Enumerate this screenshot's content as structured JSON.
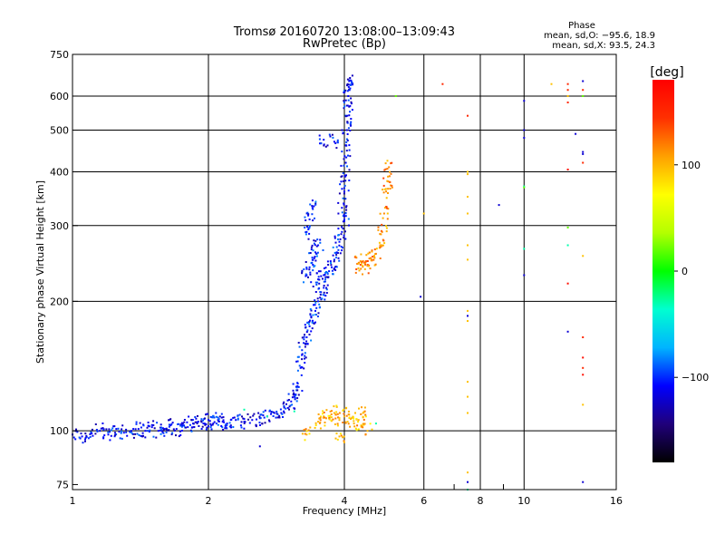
{
  "chart_data": {
    "type": "scatter",
    "title": "Tromsø 20160720 13:08:00–13:09:43",
    "subtitle": "RwPretec (Bp)",
    "xlabel": "Frequency [MHz]",
    "ylabel": "Stationary phase Virtual Height [km]",
    "x_scale": "log",
    "y_scale": "log",
    "xlim": [
      1,
      16
    ],
    "ylim": [
      73,
      750
    ],
    "x_ticks": [
      1,
      2,
      4,
      6,
      8,
      10,
      16
    ],
    "x_tick_labels": [
      "1",
      "2",
      "4",
      "6",
      "8",
      "10",
      "16"
    ],
    "y_ticks": [
      75,
      100,
      200,
      300,
      400,
      500,
      600,
      750
    ],
    "y_tick_labels": [
      "75",
      "100",
      "200",
      "300",
      "400",
      "500",
      "600",
      "750"
    ],
    "grid": true,
    "stats": {
      "heading": "Phase",
      "line_o": "mean, sd,O: −95.6, 18.9",
      "line_x": "mean, sd,X:  93.5, 24.3"
    },
    "colorbar": {
      "label": "[deg]",
      "range": [
        -180,
        180
      ],
      "ticks": [
        100,
        0,
        -100
      ],
      "tick_labels": [
        "100",
        "0",
        "−100"
      ],
      "colors": [
        "#000000",
        "#20007a",
        "#0000ff",
        "#00b4ff",
        "#00ffd0",
        "#00ff00",
        "#b4ff00",
        "#ffff00",
        "#ffa000",
        "#ff3000",
        "#ff0000"
      ]
    },
    "series": [
      {
        "name": "trace-o-low",
        "phase": -110,
        "points": [
          [
            1.0,
            98
          ],
          [
            1.05,
            97
          ],
          [
            1.1,
            99
          ],
          [
            1.15,
            100
          ],
          [
            1.2,
            98
          ],
          [
            1.25,
            101
          ],
          [
            1.3,
            99
          ],
          [
            1.35,
            100
          ],
          [
            1.4,
            101
          ],
          [
            1.45,
            100
          ],
          [
            1.5,
            102
          ],
          [
            1.55,
            100
          ],
          [
            1.6,
            101
          ],
          [
            1.65,
            103
          ],
          [
            1.7,
            101
          ],
          [
            1.75,
            103
          ],
          [
            1.8,
            102
          ],
          [
            1.85,
            104
          ],
          [
            1.9,
            105
          ],
          [
            1.95,
            104
          ],
          [
            2.0,
            106
          ],
          [
            2.05,
            104
          ],
          [
            2.1,
            106
          ],
          [
            2.15,
            105
          ],
          [
            2.2,
            104
          ],
          [
            2.3,
            106
          ],
          [
            2.4,
            105
          ],
          [
            2.5,
            106
          ],
          [
            2.6,
            107
          ],
          [
            2.7,
            108
          ],
          [
            2.8,
            110
          ],
          [
            2.9,
            110
          ],
          [
            3.0,
            113
          ],
          [
            3.05,
            117
          ],
          [
            3.1,
            120
          ],
          [
            3.15,
            127
          ]
        ]
      },
      {
        "name": "trace-o-mid",
        "phase": -105,
        "points": [
          [
            3.2,
            140
          ],
          [
            3.22,
            150
          ],
          [
            3.25,
            160
          ],
          [
            3.3,
            165
          ],
          [
            3.35,
            175
          ],
          [
            3.4,
            180
          ],
          [
            3.45,
            190
          ],
          [
            3.5,
            200
          ],
          [
            3.55,
            210
          ],
          [
            3.6,
            215
          ],
          [
            3.3,
            230
          ],
          [
            3.35,
            240
          ],
          [
            3.4,
            250
          ],
          [
            3.45,
            260
          ],
          [
            3.5,
            270
          ],
          [
            3.3,
            290
          ],
          [
            3.35,
            310
          ],
          [
            3.4,
            330
          ],
          [
            3.5,
            225
          ],
          [
            3.6,
            230
          ],
          [
            3.7,
            235
          ],
          [
            3.75,
            240
          ],
          [
            3.8,
            250
          ],
          [
            3.85,
            260
          ],
          [
            3.9,
            275
          ],
          [
            3.95,
            290
          ],
          [
            4.0,
            310
          ]
        ]
      },
      {
        "name": "trace-o-high",
        "phase": -110,
        "points": [
          [
            3.95,
            330
          ],
          [
            4.0,
            360
          ],
          [
            4.02,
            390
          ],
          [
            4.03,
            420
          ],
          [
            4.04,
            460
          ],
          [
            4.05,
            500
          ],
          [
            4.06,
            540
          ],
          [
            4.07,
            570
          ],
          [
            4.08,
            600
          ],
          [
            4.09,
            630
          ],
          [
            4.1,
            650
          ],
          [
            3.6,
            475
          ],
          [
            3.8,
            470
          ]
        ]
      },
      {
        "name": "trace-x-e",
        "phase": 100,
        "points": [
          [
            3.5,
            105
          ],
          [
            3.6,
            108
          ],
          [
            3.7,
            107
          ],
          [
            3.8,
            110
          ],
          [
            3.9,
            106
          ],
          [
            4.0,
            108
          ],
          [
            4.1,
            109
          ],
          [
            4.2,
            104
          ],
          [
            4.3,
            106
          ],
          [
            4.4,
            110
          ],
          [
            4.5,
            100
          ],
          [
            3.3,
            98
          ],
          [
            3.9,
            97
          ]
        ]
      },
      {
        "name": "trace-x-f",
        "phase": 115,
        "points": [
          [
            4.4,
            248
          ],
          [
            4.5,
            242
          ],
          [
            4.6,
            250
          ],
          [
            4.7,
            258
          ],
          [
            4.8,
            270
          ],
          [
            4.85,
            290
          ],
          [
            4.9,
            320
          ],
          [
            4.95,
            360
          ],
          [
            5.0,
            380
          ],
          [
            5.02,
            410
          ],
          [
            4.3,
            245
          ],
          [
            4.35,
            238
          ]
        ]
      },
      {
        "name": "noise-cyan",
        "phase": -30,
        "points": [
          [
            2.4,
            112
          ],
          [
            2.7,
            108
          ],
          [
            3.1,
            111
          ],
          [
            4.7,
            104
          ],
          [
            10,
            370
          ],
          [
            10,
            265
          ],
          [
            12.5,
            270
          ],
          [
            7.5,
            73
          ]
        ]
      },
      {
        "name": "noise-green",
        "phase": 20,
        "points": [
          [
            5.2,
            600
          ],
          [
            10,
            368
          ],
          [
            12.5,
            297
          ],
          [
            13.5,
            600
          ]
        ]
      },
      {
        "name": "noise-yellow",
        "phase": 95,
        "points": [
          [
            7.5,
            400
          ],
          [
            7.5,
            395
          ],
          [
            7.5,
            350
          ],
          [
            7.5,
            320
          ],
          [
            7.5,
            270
          ],
          [
            7.5,
            250
          ],
          [
            7.5,
            190
          ],
          [
            7.5,
            180
          ],
          [
            7.5,
            130
          ],
          [
            7.5,
            120
          ],
          [
            7.5,
            110
          ],
          [
            7.5,
            80
          ],
          [
            6.0,
            320
          ],
          [
            13.5,
            255
          ],
          [
            13.5,
            115
          ],
          [
            11.5,
            640
          ],
          [
            12.5,
            600
          ]
        ]
      },
      {
        "name": "noise-orange",
        "phase": 150,
        "points": [
          [
            6.6,
            640
          ],
          [
            7.5,
            540
          ],
          [
            12.5,
            640
          ],
          [
            12.5,
            620
          ],
          [
            12.5,
            580
          ],
          [
            13.5,
            620
          ],
          [
            13.5,
            420
          ],
          [
            13.5,
            165
          ],
          [
            13.5,
            140
          ]
        ]
      },
      {
        "name": "noise-red",
        "phase": 170,
        "points": [
          [
            12.5,
            405
          ],
          [
            12.5,
            220
          ],
          [
            13.5,
            135
          ],
          [
            13.5,
            148
          ]
        ]
      },
      {
        "name": "noise-blue",
        "phase": -120,
        "points": [
          [
            5.9,
            205
          ],
          [
            7.5,
            185
          ],
          [
            10,
            585
          ],
          [
            10,
            500
          ],
          [
            10,
            480
          ],
          [
            10,
            230
          ],
          [
            12.5,
            170
          ],
          [
            13.0,
            490
          ],
          [
            13.5,
            440
          ],
          [
            13.5,
            445
          ],
          [
            13.5,
            650
          ],
          [
            13.5,
            76
          ],
          [
            7.5,
            76
          ],
          [
            8.8,
            335
          ],
          [
            2.6,
            92
          ]
        ]
      }
    ]
  }
}
